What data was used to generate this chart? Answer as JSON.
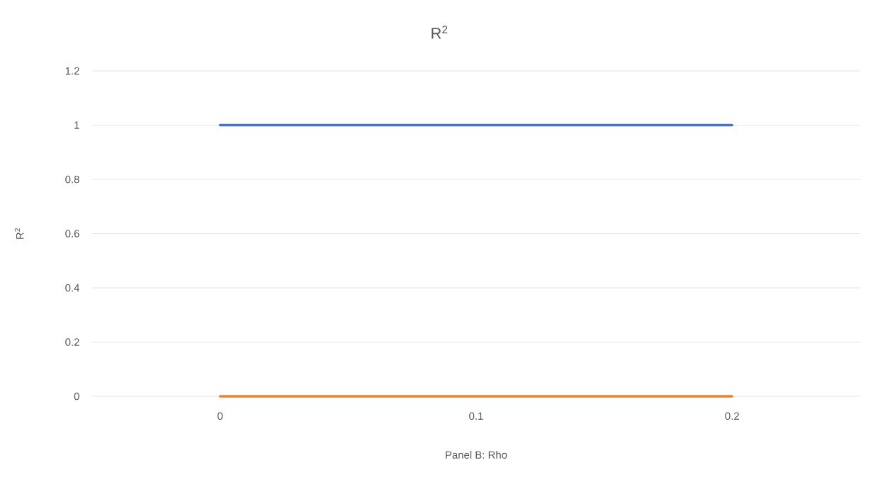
{
  "chart_data": {
    "type": "line",
    "title": "R$^{2}$",
    "xlabel": "Panel B: Rho",
    "ylabel": "R$^{2}$",
    "x": [
      0,
      0.2
    ],
    "series": [
      {
        "color": "#4472c4",
        "values": [
          1,
          1
        ]
      },
      {
        "color": "#ed7d31",
        "values": [
          0,
          0
        ]
      }
    ],
    "xlim": [
      -0.05,
      0.25
    ],
    "xticks": [
      0,
      0.1,
      0.2
    ],
    "ylim": [
      0,
      1.2
    ],
    "yticks": [
      0,
      0.2,
      0.4,
      0.6,
      0.8,
      1,
      1.2
    ],
    "grid": "y",
    "marker": "none",
    "line_style": "solid"
  }
}
